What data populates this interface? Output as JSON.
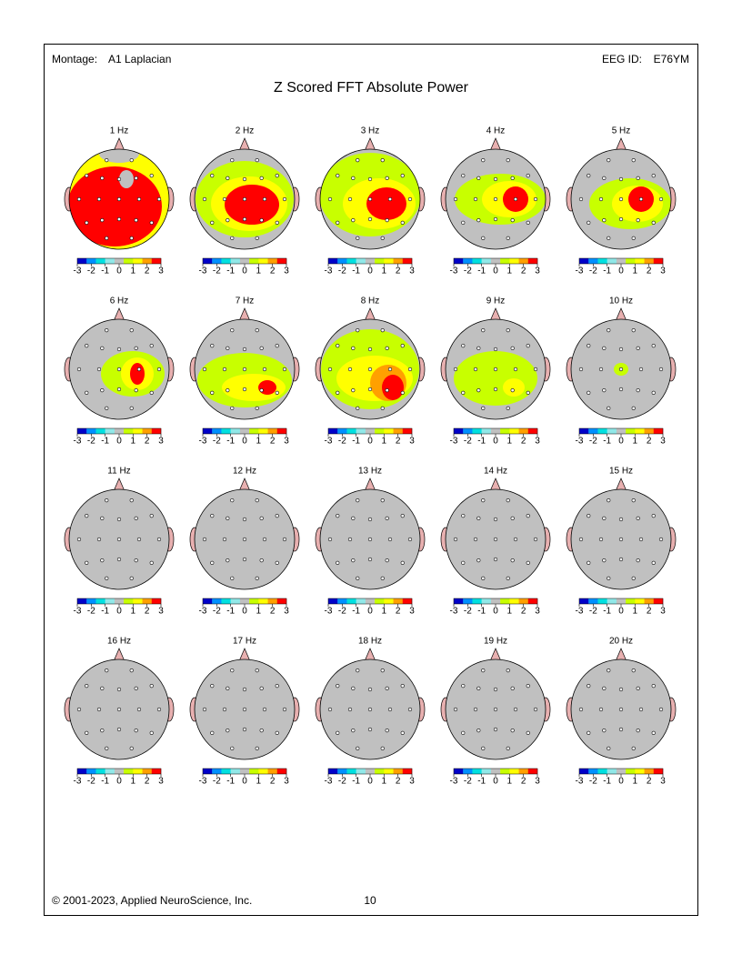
{
  "header": {
    "montage_label": "Montage:",
    "montage": "A1 Laplacian",
    "eeg_id_label": "EEG ID:",
    "eeg_id": "E76YM",
    "title": "Z Scored FFT Absolute Power"
  },
  "maps": [
    "1 Hz",
    "2 Hz",
    "3 Hz",
    "4 Hz",
    "5 Hz",
    "6 Hz",
    "7 Hz",
    "8 Hz",
    "9 Hz",
    "10 Hz",
    "11 Hz",
    "12 Hz",
    "13 Hz",
    "14 Hz",
    "15 Hz",
    "16 Hz",
    "17 Hz",
    "18 Hz",
    "19 Hz",
    "20 Hz"
  ],
  "color_scale": {
    "lim": [
      -3,
      3
    ],
    "ticks": [
      -3,
      -2,
      -1,
      0,
      1,
      2,
      3
    ],
    "colors": [
      "#0000c8",
      "#0090ff",
      "#00e0e0",
      "#90e8e8",
      "#c0c0c0",
      "#c8ff00",
      "#ffff00",
      "#ffa000",
      "#ff0000"
    ]
  },
  "footer": {
    "copyright": "© 2001-2023, Applied NeuroScience, Inc.",
    "page": "10"
  }
}
